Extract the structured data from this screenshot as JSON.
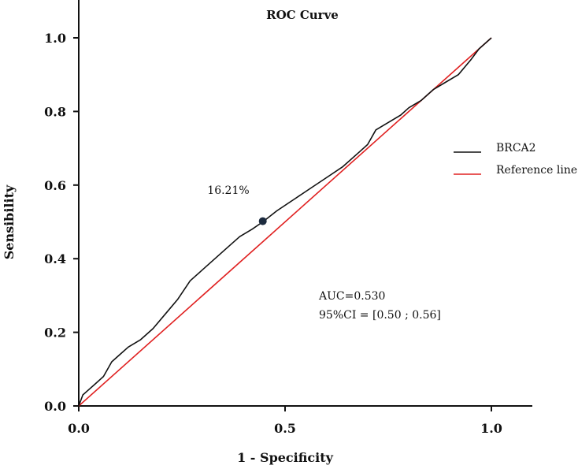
{
  "chart_data": {
    "type": "line",
    "title": "ROC Curve",
    "xlabel": "1 - Specificity",
    "ylabel": "Sensibility",
    "xlim": [
      0,
      1.1
    ],
    "ylim": [
      0,
      1.1
    ],
    "x_ticks": [
      0.0,
      0.5,
      1.0
    ],
    "x_tick_labels": [
      "0.0",
      "0.5",
      "1.0"
    ],
    "y_ticks": [
      0.0,
      0.2,
      0.4,
      0.6,
      0.8,
      1.0
    ],
    "y_tick_labels": [
      "0.0",
      "0.2",
      "0.4",
      "0.6",
      "0.8",
      "1.0"
    ],
    "legend_position": "right",
    "series": [
      {
        "name": "BRCA2",
        "color": "#111111",
        "x": [
          0.0,
          0.01,
          0.02,
          0.04,
          0.06,
          0.08,
          0.1,
          0.12,
          0.15,
          0.18,
          0.21,
          0.24,
          0.27,
          0.3,
          0.33,
          0.36,
          0.39,
          0.42,
          0.446,
          0.48,
          0.52,
          0.56,
          0.6,
          0.64,
          0.68,
          0.7,
          0.72,
          0.75,
          0.78,
          0.8,
          0.83,
          0.86,
          0.89,
          0.92,
          0.95,
          0.97,
          1.0
        ],
        "y": [
          0.0,
          0.03,
          0.04,
          0.06,
          0.08,
          0.12,
          0.14,
          0.16,
          0.18,
          0.21,
          0.25,
          0.29,
          0.34,
          0.37,
          0.4,
          0.43,
          0.46,
          0.48,
          0.5,
          0.53,
          0.56,
          0.59,
          0.62,
          0.65,
          0.69,
          0.71,
          0.75,
          0.77,
          0.79,
          0.81,
          0.83,
          0.86,
          0.88,
          0.9,
          0.94,
          0.97,
          1.0
        ]
      },
      {
        "name": "Reference line",
        "color": "#e02020",
        "x": [
          0.0,
          1.0
        ],
        "y": [
          0.0,
          1.0
        ]
      }
    ],
    "highlight_point": {
      "x": 0.446,
      "y": 0.502,
      "label": "16.21%",
      "color": "#1c2b3f"
    },
    "annotations": [
      "AUC=0.530",
      "95%CI = [0.50 ; 0.56]"
    ]
  }
}
